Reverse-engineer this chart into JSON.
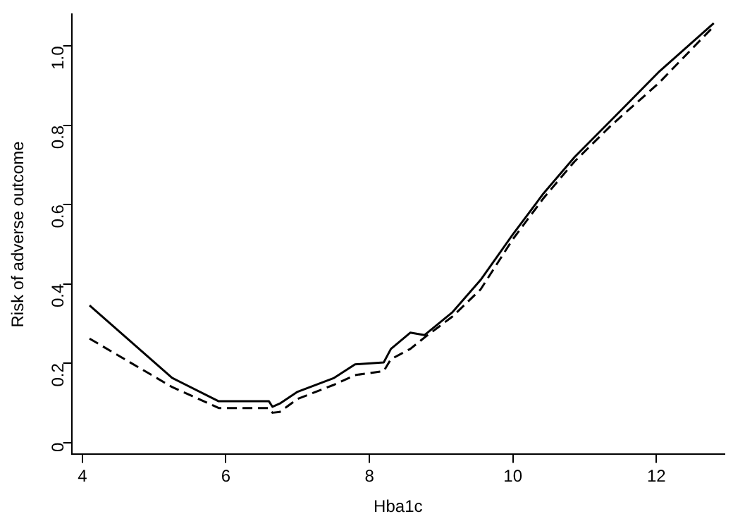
{
  "chart_data": {
    "type": "line",
    "xlabel": "Hba1c",
    "ylabel": "Risk of adverse outcome",
    "x": [
      4.1,
      5.25,
      5.9,
      6.6,
      6.65,
      6.75,
      7.0,
      7.5,
      7.8,
      8.2,
      8.3,
      8.57,
      8.77,
      9.16,
      9.55,
      10.0,
      10.43,
      10.86,
      11.37,
      12.03,
      12.8
    ],
    "series": [
      {
        "color": "#000000",
        "line_style": "solid",
        "values": [
          0.346,
          0.163,
          0.104,
          0.104,
          0.09,
          0.098,
          0.128,
          0.162,
          0.197,
          0.202,
          0.236,
          0.277,
          0.271,
          0.329,
          0.41,
          0.525,
          0.629,
          0.72,
          0.813,
          0.934,
          1.058
        ]
      },
      {
        "color": "#000000",
        "line_style": "dashed",
        "values": [
          0.262,
          0.14,
          0.087,
          0.087,
          0.075,
          0.077,
          0.11,
          0.145,
          0.17,
          0.18,
          0.21,
          0.236,
          0.265,
          0.318,
          0.386,
          0.513,
          0.617,
          0.709,
          0.8,
          0.906,
          1.05
        ]
      }
    ],
    "xlim": [
      3.85,
      12.95
    ],
    "xticks": [
      4,
      6,
      8,
      10,
      12
    ],
    "ylim": [
      -0.03,
      1.08
    ],
    "yticks": [
      0,
      0.2,
      0.4,
      0.6,
      0.8,
      {
        "value": 1,
        "label": "1.0"
      }
    ],
    "grid": false,
    "legend": false,
    "marker": "none"
  }
}
